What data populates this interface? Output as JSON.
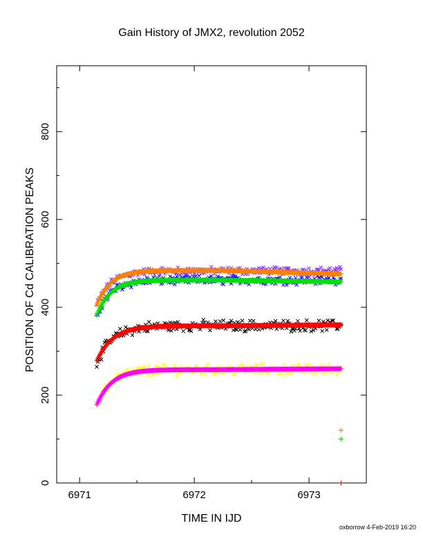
{
  "chart_data": {
    "type": "scatter",
    "title": "Gain History of JMX2, revolution 2052",
    "xlabel": "TIME IN IJD",
    "ylabel": "POSITION OF Cd CALIBRATION PEAKS",
    "xlim": [
      6970.8,
      6973.5
    ],
    "ylim": [
      0,
      950
    ],
    "x_ticks": [
      6971,
      6972,
      6973
    ],
    "x_tick_labels": [
      "6971",
      "6972",
      "6973"
    ],
    "y_ticks": [
      0,
      200,
      400,
      600,
      800
    ],
    "y_tick_labels": [
      "0",
      "200",
      "400",
      "600",
      "800"
    ],
    "x_start": 6971.15,
    "x_end": 6973.28,
    "series": [
      {
        "color": "#7f2fff",
        "marker": "x",
        "kind": "scatter",
        "curve": {
          "base": 405,
          "plateau": 483,
          "tau": 0.12
        },
        "scatter": 7,
        "end_value": 477
      },
      {
        "color": "#0000ff",
        "marker": "x",
        "kind": "scatter",
        "curve": {
          "base": 380,
          "plateau": 462,
          "tau": 0.12
        },
        "scatter": 8,
        "end_value": 456
      },
      {
        "color": "#ff8000",
        "marker": "+",
        "kind": "fit",
        "curve": {
          "base": 405,
          "plateau": 484,
          "tau": 0.12
        },
        "end_value": 476
      },
      {
        "color": "#00e000",
        "marker": "+",
        "kind": "fit",
        "curve": {
          "base": 382,
          "plateau": 462,
          "tau": 0.12
        },
        "end_value": 458
      },
      {
        "color": "#000000",
        "marker": "x",
        "kind": "scatter",
        "curve": {
          "base": 275,
          "plateau": 358,
          "tau": 0.14
        },
        "scatter": 10,
        "end_value": 360
      },
      {
        "color": "#ff0000",
        "marker": "+",
        "kind": "fit",
        "curve": {
          "base": 278,
          "plateau": 358,
          "tau": 0.14
        },
        "end_value": 360
      },
      {
        "color": "#ffff00",
        "marker": "x",
        "kind": "scatter",
        "curve": {
          "base": 180,
          "plateau": 258,
          "tau": 0.13
        },
        "scatter": 10,
        "end_value": 262
      },
      {
        "color": "#ff00ff",
        "marker": "+",
        "kind": "fit",
        "curve": {
          "base": 178,
          "plateau": 258,
          "tau": 0.13
        },
        "end_value": 260
      }
    ],
    "isolated_points": [
      {
        "x": 6973.28,
        "y": 120,
        "color": "#ff8000",
        "marker": "+"
      },
      {
        "x": 6973.28,
        "y": 100,
        "color": "#00e000",
        "marker": "+"
      },
      {
        "x": 6973.28,
        "y": 0,
        "color": "#ff0000",
        "marker": "+"
      }
    ]
  },
  "footer": "oxborrow  4-Feb-2019 16:20"
}
